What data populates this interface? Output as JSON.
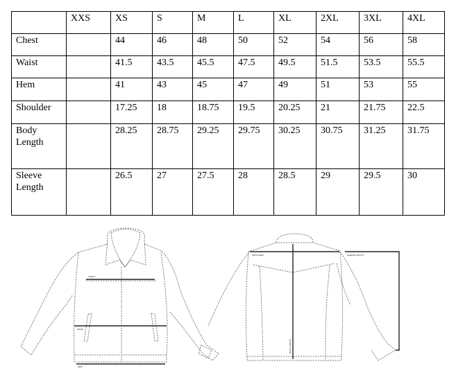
{
  "size_chart": {
    "headers": [
      "",
      "XXS",
      "XS",
      "S",
      "M",
      "L",
      "XL",
      "2XL",
      "3XL",
      "4XL"
    ],
    "rows": [
      {
        "label": "Chest",
        "values": [
          "",
          "44",
          "46",
          "48",
          "50",
          "52",
          "54",
          "56",
          "58"
        ]
      },
      {
        "label": "Waist",
        "values": [
          "",
          "41.5",
          "43.5",
          "45.5",
          "47.5",
          "49.5",
          "51.5",
          "53.5",
          "55.5"
        ]
      },
      {
        "label": "Hem",
        "values": [
          "",
          "41",
          "43",
          "45",
          "47",
          "49",
          "51",
          "53",
          "55"
        ]
      },
      {
        "label": "Shoulder",
        "values": [
          "",
          "17.25",
          "18",
          "18.75",
          "19.5",
          "20.25",
          "21",
          "21.75",
          "22.5"
        ]
      },
      {
        "label": "Body Length",
        "values": [
          "",
          "28.25",
          "28.75",
          "29.25",
          "29.75",
          "30.25",
          "30.75",
          "31.25",
          "31.75"
        ]
      },
      {
        "label": "Sleeve Length",
        "values": [
          "",
          "26.5",
          "27",
          "27.5",
          "28",
          "28.5",
          "29",
          "29.5",
          "30"
        ]
      }
    ]
  },
  "diagram": {
    "labels": {
      "chest": "CHEST",
      "waist": "WAIST",
      "hem": "HEM",
      "shoulder": "SHOULDER",
      "sleeve_length": "SLEEVE LENGTH",
      "body_length": "BODY LENGTH"
    }
  }
}
